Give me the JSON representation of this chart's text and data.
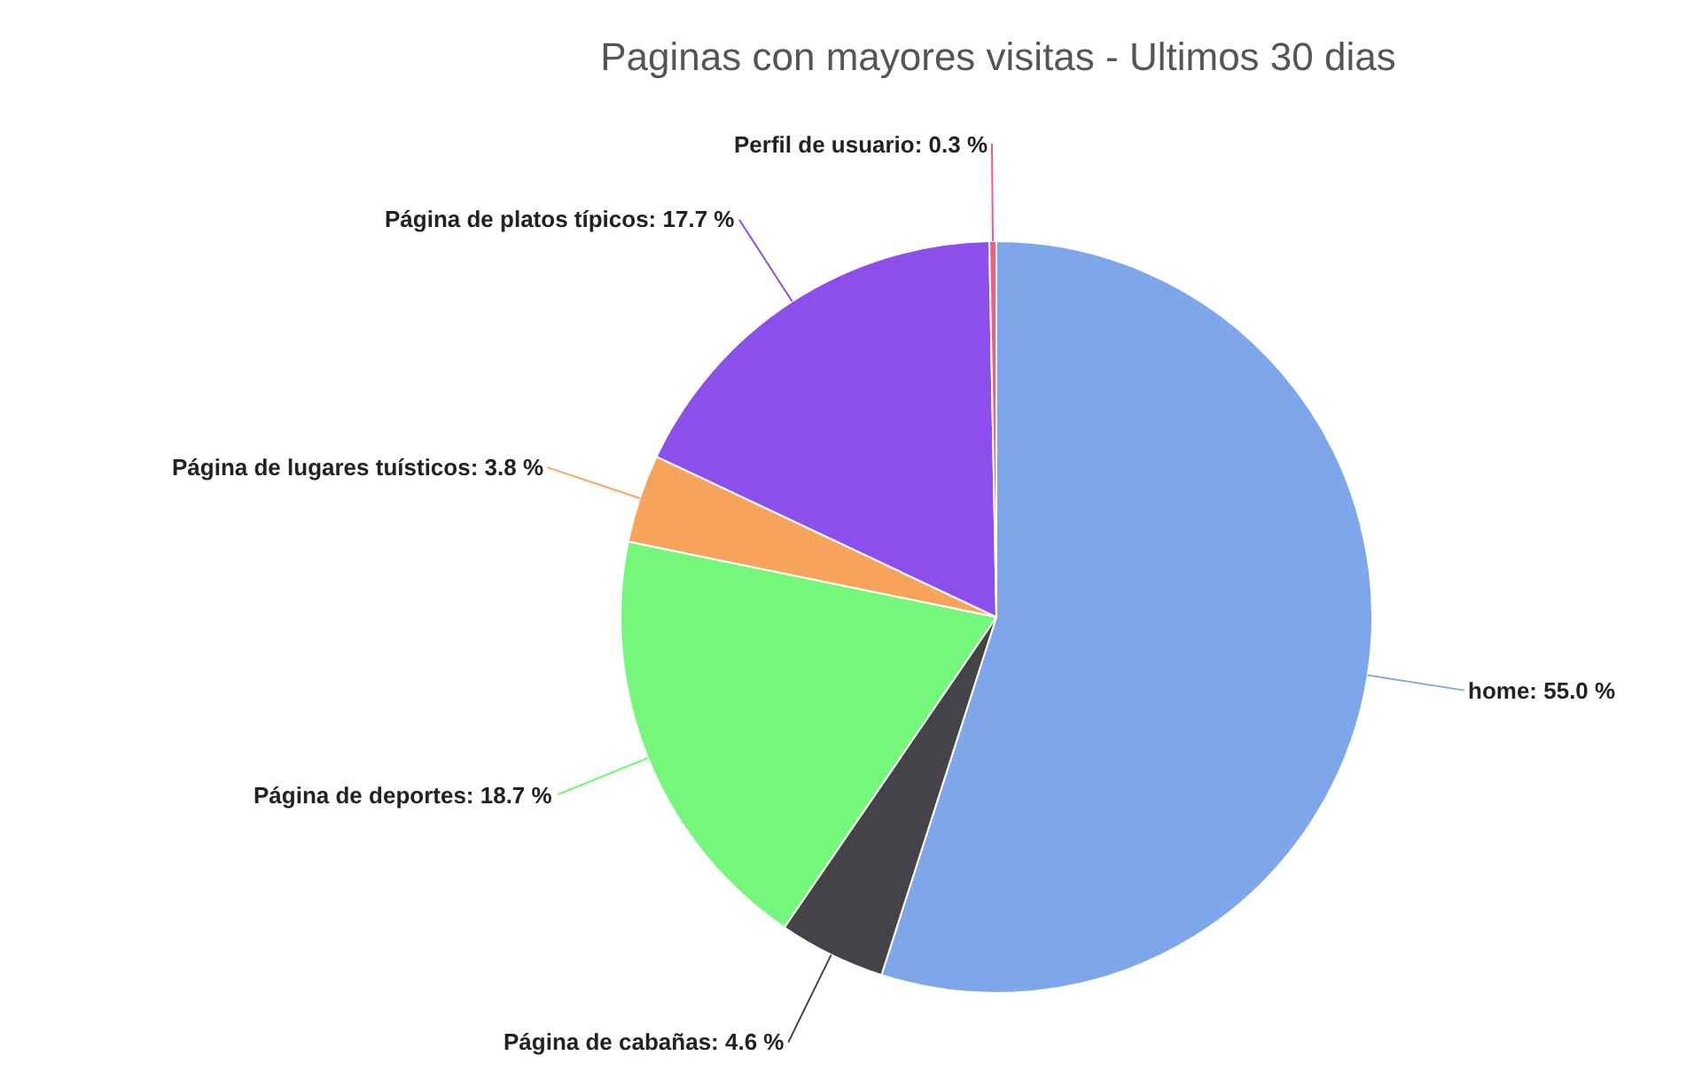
{
  "chart_data": {
    "type": "pie",
    "title": "Paginas con mayores visitas - Ultimos 30 dias",
    "categories": [
      "home",
      "Página de cabañas",
      "Página de deportes",
      "Página de lugares tuísticos",
      "Página de platos típicos",
      "Perfil de usuario"
    ],
    "values": [
      55.0,
      4.6,
      18.7,
      3.8,
      17.7,
      0.3
    ],
    "value_labels": [
      "55.0 %",
      "4.6 %",
      "18.7 %",
      "3.8 %",
      "17.7 %",
      "0.3 %"
    ],
    "colors": [
      "#7ea6ea",
      "#434348",
      "#74f77a",
      "#f7a35c",
      "#8c4fec",
      "#f15c80"
    ]
  }
}
